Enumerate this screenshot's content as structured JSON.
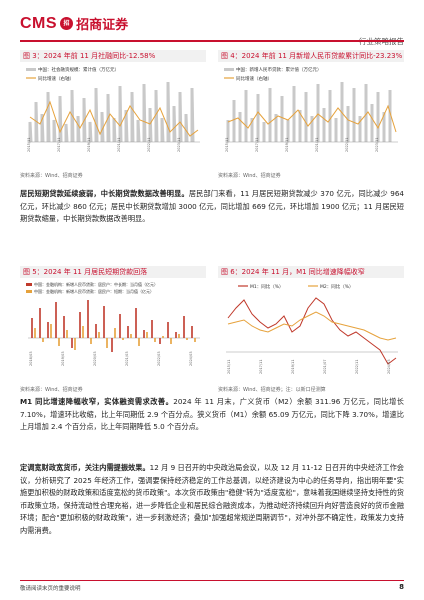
{
  "header": {
    "logo_text": "CMS",
    "logo_badge": "招",
    "logo_cn": "招商证券",
    "report_type": "行业策略报告"
  },
  "figures": [
    {
      "title": "图 3：2024 年前 11 月社融同比-12.58%",
      "source": "资料来源：Wind、招商证券",
      "legend": [
        "中国：社会融资规模：累计值（万亿元）",
        "同比增速（右轴）"
      ]
    },
    {
      "title": "图 4：2024 年前 11 月新增人民币贷款累计同比-23.23%",
      "source": "资料来源：Wind、招商证券",
      "legend": [
        "中国：新增人民币贷款：累计值（万亿元）",
        "同比增速（右轴）"
      ]
    },
    {
      "title": "图 5：2024 年 11 月居民短期贷款回落",
      "source": "资料来源：Wind、招商证券",
      "legend": [
        "中国：金融机构：新增人民币贷款：居民户：中长期：当月值（亿元）",
        "中国：金融机构：新增人民币贷款：居民户：短期：当月值（亿元）"
      ]
    },
    {
      "title": "图 6：2024 年 11 月，M1 同比增速降幅收窄",
      "source": "资料来源：Wind、招商证券；注：以新口径测算",
      "legend": [
        "M1：同比（%）",
        "M2：同比（%）"
      ]
    }
  ],
  "paragraphs": [
    {
      "lead": "居民短期贷款延续疲弱，中长期贷款数据改善明显。",
      "body": "居民部门来看，11 月居民短期贷款减少 370 亿元，同比减少 964 亿元，环比减少 860 亿元；居民中长期贷款增加 3000 亿元，同比增加 669 亿元，环比增加 1900 亿元；11 月居民短期贷款缩量，中长期贷款数据改善明显。"
    },
    {
      "lead": "M1 同比增速降幅收窄，实体融资需求改善。",
      "body": "2024 年 11 月末，广义货币（M2）余额 311.96 万亿元，同比增长 7.10%，增速环比收缩，比上年同期低 2.9 个百分点。狭义货币（M1）余额 65.09 万亿元，同比下降 3.70%，增速比上月增加 2.4 个百分点，比上年同期降低 5.0 个百分点。"
    },
    {
      "lead": "定调宽财政宽货币，关注内需提振效果。",
      "body": "12 月 9 日召开的中央政治局会议，以及 12 月 11-12 日召开的中央经济工作会议，分析研究了 2025 年经济工作，强调要保持经济稳定的工作总基调，以经济建设为中心的任务导向，指出明年要\"实施更加积极的财政政策和适度宽松的货币政策\"。本次货币政策由\"稳健\"转为\"适度宽松\"，意味着我国继续坚持支持性的货币政策立场，保持流动性合理充裕，进一步降低企业和居民综合融资成本，为推动经济持续回升向好营造良好的货币金融环境；配合\"更加积极的财政政策\"，进一步刺激经济；叠加\"加强超常规逆周期调节\"，对冲外部不确定性，政策发力支持内需消费。"
    }
  ],
  "footer": {
    "note": "敬请阅读末页的重要说明",
    "page_number": "8"
  },
  "colors": {
    "brand": "#c8102e",
    "bar_gray": "#c9c9c9",
    "line_gold": "#e6a23c",
    "bar_red": "#c0392b"
  }
}
